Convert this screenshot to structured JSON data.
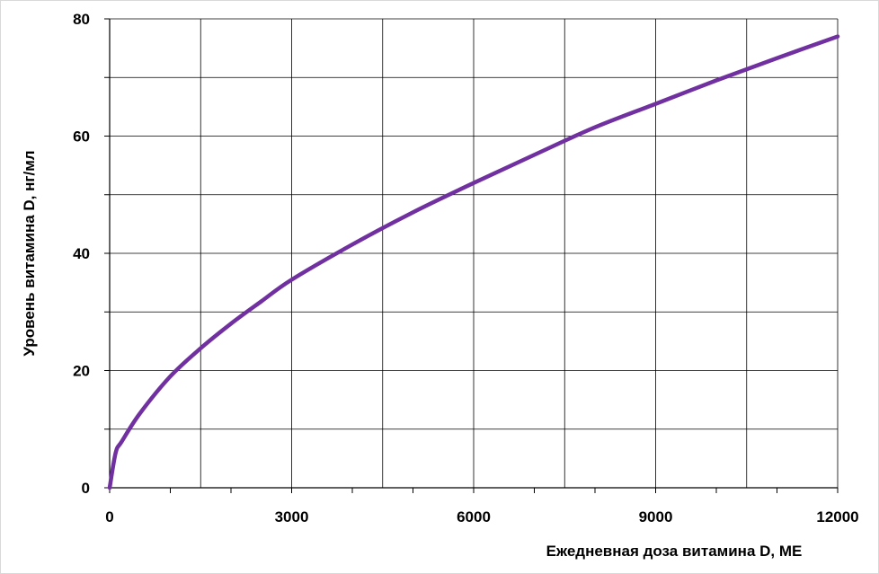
{
  "chart_data": {
    "type": "line",
    "xlabel": "Ежедневная доза витамина D, МЕ",
    "ylabel": "Уровень витамина D, нг/мл",
    "xlim": [
      0,
      12000
    ],
    "ylim": [
      0,
      80
    ],
    "xticks": [
      0,
      3000,
      6000,
      9000,
      12000
    ],
    "yticks": [
      0,
      20,
      40,
      60,
      80
    ],
    "grid": true,
    "line_color": "#7030a0",
    "series": [
      {
        "x": [
          0,
          100,
          200,
          500,
          1000,
          1500,
          2000,
          2500,
          3000,
          4000,
          5000,
          6000,
          7000,
          8000,
          9000,
          10000,
          11000,
          12000
        ],
        "y": [
          0,
          6,
          7.9,
          12.7,
          19,
          23.8,
          28,
          31.8,
          35.5,
          41.5,
          47,
          52,
          56.8,
          61.5,
          65.5,
          69.5,
          73.3,
          77
        ]
      }
    ]
  }
}
